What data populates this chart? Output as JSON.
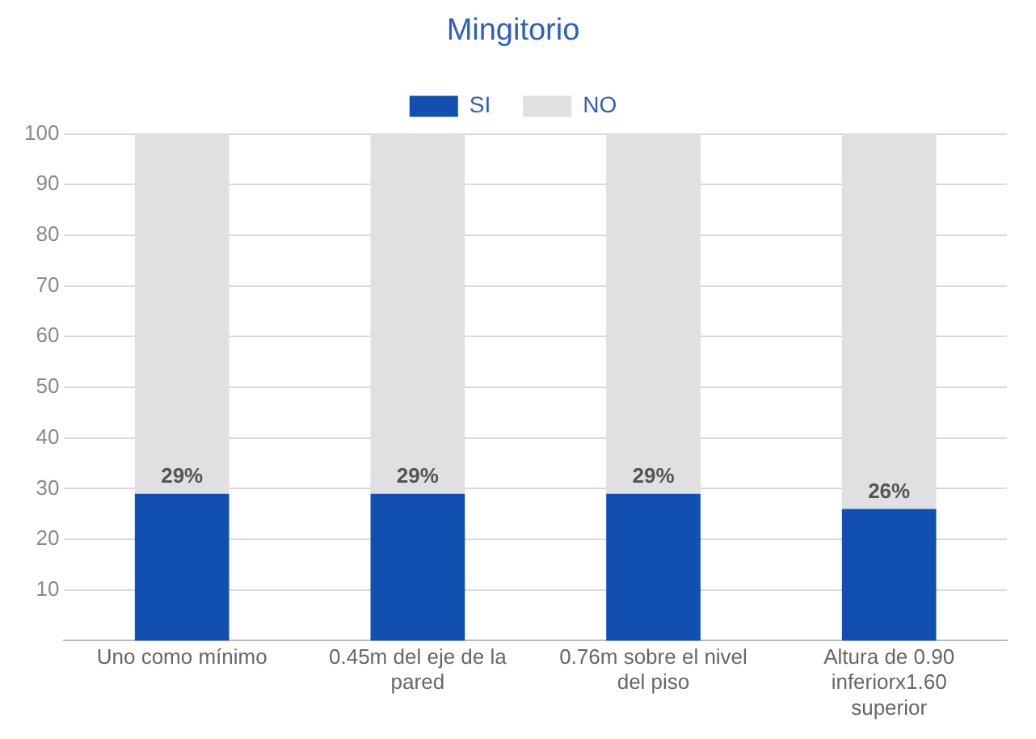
{
  "chart_data": {
    "type": "bar",
    "title": "Mingitorio",
    "stacked": true,
    "legend": "top",
    "grid": "y",
    "categories": [
      "Uno como mínimo",
      "0.45m del eje de la pared",
      "0.76m sobre el nivel del piso",
      "Altura de 0.90 inferiorx1.60 superior"
    ],
    "series": [
      {
        "name": "SI",
        "color": "#1150b0",
        "values": [
          29,
          29,
          29,
          26
        ],
        "value_labels": [
          "29%",
          "29%",
          "29%",
          "26%"
        ]
      },
      {
        "name": "NO",
        "color": "#e0e0e2",
        "values": [
          71,
          71,
          71,
          74
        ]
      }
    ],
    "ylim": [
      0,
      100
    ],
    "yticks": [
      10,
      20,
      30,
      40,
      50,
      60,
      70,
      80,
      90,
      100
    ]
  }
}
